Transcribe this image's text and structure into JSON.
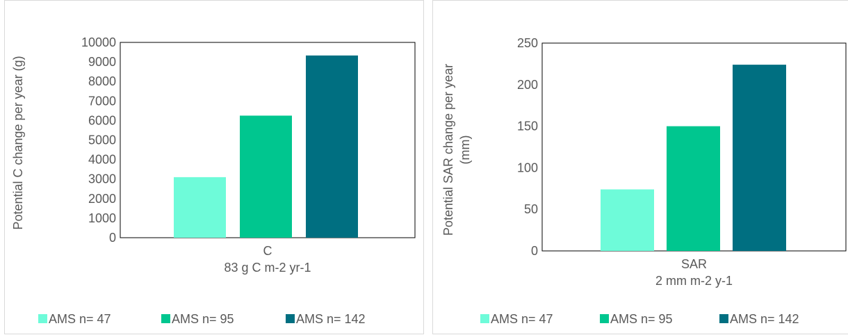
{
  "chart_data": [
    {
      "type": "bar",
      "categories": [
        "C"
      ],
      "category_sublabel": "83 g C m-2 yr-1",
      "series": [
        {
          "name": "AMS n= 47",
          "values": [
            3100
          ],
          "color": "#6EFBD9"
        },
        {
          "name": "AMS n= 95",
          "values": [
            6250
          ],
          "color": "#00C68F"
        },
        {
          "name": "AMS n= 142",
          "values": [
            9330
          ],
          "color": "#006F81"
        }
      ],
      "ylabel": "Potential C change per year (g)",
      "ylim": [
        0,
        10000
      ],
      "yticks": [
        0,
        1000,
        2000,
        3000,
        4000,
        5000,
        6000,
        7000,
        8000,
        9000,
        10000
      ],
      "legend_position": "bottom",
      "grid": false
    },
    {
      "type": "bar",
      "categories": [
        "SAR"
      ],
      "category_sublabel": "2 mm m-2 y-1",
      "series": [
        {
          "name": "AMS n= 47",
          "values": [
            74
          ],
          "color": "#6EFBD9"
        },
        {
          "name": "AMS n= 95",
          "values": [
            150
          ],
          "color": "#00C68F"
        },
        {
          "name": "AMS n= 142",
          "values": [
            224
          ],
          "color": "#006F81"
        }
      ],
      "ylabel_lines": [
        "Potential SAR change per year",
        "(mm)"
      ],
      "ylim": [
        0,
        250
      ],
      "yticks": [
        0,
        50,
        100,
        150,
        200,
        250
      ],
      "legend_position": "bottom",
      "grid": false
    }
  ]
}
